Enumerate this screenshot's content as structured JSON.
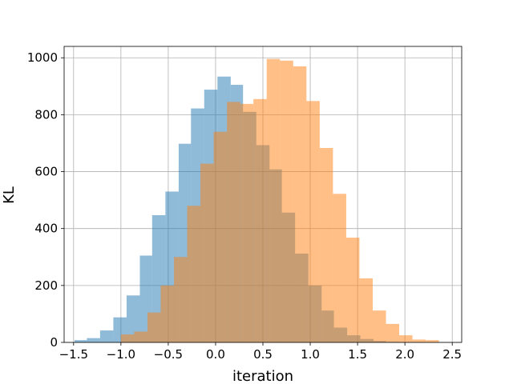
{
  "chart_data": {
    "type": "bar",
    "xlabel": "iteration",
    "ylabel": "KL",
    "xlim": [
      -1.6,
      2.6
    ],
    "ylim": [
      0,
      1040
    ],
    "xticks": [
      -1.5,
      -1.0,
      -0.5,
      0.0,
      0.5,
      1.0,
      1.5,
      2.0,
      2.5
    ],
    "xtick_labels": [
      "−1.5",
      "−1.0",
      "−0.5",
      "0.0",
      "0.5",
      "1.0",
      "1.5",
      "2.0",
      "2.5"
    ],
    "yticks": [
      0,
      200,
      400,
      600,
      800,
      1000
    ],
    "ytick_labels": [
      "0",
      "200",
      "400",
      "600",
      "800",
      "1000"
    ],
    "grid": true,
    "series": [
      {
        "color": "#1f77b4",
        "opacity": 0.5,
        "bins": [
          [
            -1.49,
            -1.36,
            8
          ],
          [
            -1.36,
            -1.22,
            15
          ],
          [
            -1.22,
            -1.08,
            42
          ],
          [
            -1.08,
            -0.94,
            88
          ],
          [
            -0.94,
            -0.8,
            165
          ],
          [
            -0.8,
            -0.67,
            305
          ],
          [
            -0.67,
            -0.53,
            447
          ],
          [
            -0.53,
            -0.39,
            530
          ],
          [
            -0.39,
            -0.26,
            698
          ],
          [
            -0.26,
            -0.12,
            822
          ],
          [
            -0.12,
            0.02,
            888
          ],
          [
            0.02,
            0.16,
            934
          ],
          [
            0.16,
            0.29,
            905
          ],
          [
            0.29,
            0.43,
            810
          ],
          [
            0.43,
            0.57,
            693
          ],
          [
            0.57,
            0.7,
            608
          ],
          [
            0.7,
            0.84,
            456
          ],
          [
            0.84,
            0.98,
            312
          ],
          [
            0.98,
            1.12,
            200
          ],
          [
            1.12,
            1.25,
            112
          ],
          [
            1.25,
            1.39,
            52
          ],
          [
            1.39,
            1.53,
            25
          ],
          [
            1.53,
            1.67,
            12
          ],
          [
            1.67,
            1.8,
            5
          ],
          [
            1.8,
            1.94,
            2
          ]
        ]
      },
      {
        "color": "#ff7f0e",
        "opacity": 0.5,
        "bins": [
          [
            -1.0,
            -0.86,
            28
          ],
          [
            -0.86,
            -0.72,
            38
          ],
          [
            -0.72,
            -0.58,
            105
          ],
          [
            -0.58,
            -0.44,
            200
          ],
          [
            -0.44,
            -0.3,
            300
          ],
          [
            -0.3,
            -0.16,
            480
          ],
          [
            -0.16,
            -0.02,
            628
          ],
          [
            -0.02,
            0.12,
            740
          ],
          [
            0.12,
            0.26,
            845
          ],
          [
            0.26,
            0.4,
            838
          ],
          [
            0.4,
            0.54,
            855
          ],
          [
            0.54,
            0.68,
            996
          ],
          [
            0.68,
            0.82,
            990
          ],
          [
            0.82,
            0.96,
            970
          ],
          [
            0.96,
            1.1,
            848
          ],
          [
            1.1,
            1.24,
            683
          ],
          [
            1.24,
            1.38,
            522
          ],
          [
            1.38,
            1.52,
            368
          ],
          [
            1.52,
            1.66,
            225
          ],
          [
            1.66,
            1.8,
            112
          ],
          [
            1.8,
            1.94,
            65
          ],
          [
            1.94,
            2.08,
            25
          ],
          [
            2.08,
            2.22,
            10
          ],
          [
            2.22,
            2.36,
            8
          ]
        ]
      }
    ]
  }
}
